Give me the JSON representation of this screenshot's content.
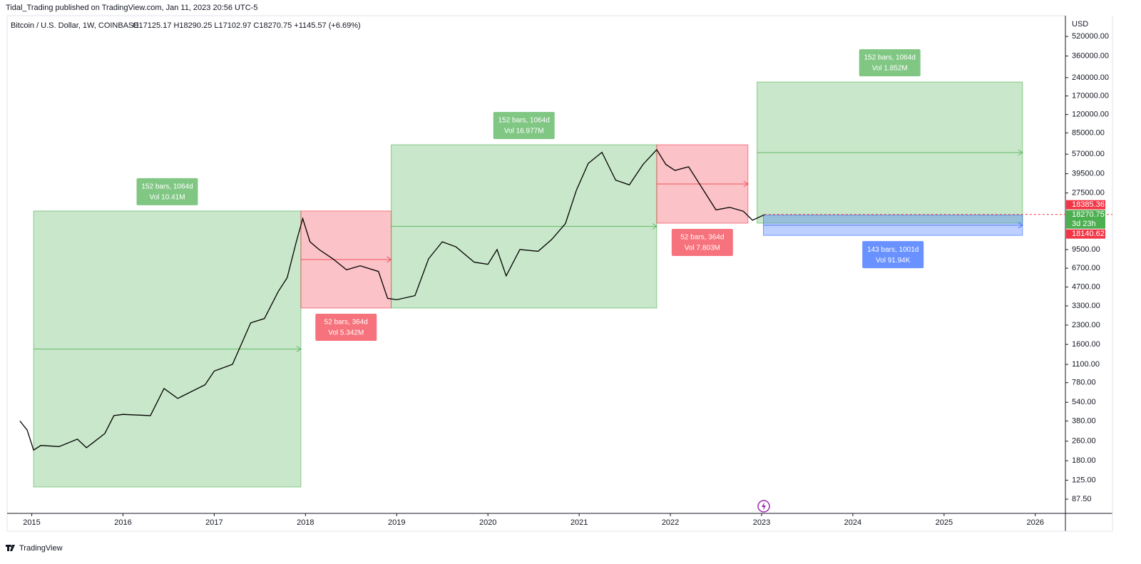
{
  "header": {
    "publisher": "Tidal_Trading published on TradingView.com, Jan 11, 2023 20:56 UTC-5",
    "brand": "TradingView"
  },
  "chart_data": {
    "type": "line",
    "title": "Bitcoin / U.S. Dollar, 1W, COINBASE",
    "ohlc": "O17125.17  H18290.25  L17102.97  C18270.75  +1145.57 (+6.69%)",
    "currency": "USD",
    "color": "#000000",
    "log_scale": true,
    "x": [
      2014.87,
      2014.95,
      2015.02,
      2015.1,
      2015.3,
      2015.5,
      2015.6,
      2015.8,
      2015.9,
      2016.0,
      2016.3,
      2016.45,
      2016.6,
      2016.9,
      2017.0,
      2017.2,
      2017.4,
      2017.55,
      2017.7,
      2017.8,
      2017.9,
      2017.97,
      2018.05,
      2018.15,
      2018.3,
      2018.45,
      2018.6,
      2018.8,
      2018.9,
      2019.0,
      2019.2,
      2019.35,
      2019.5,
      2019.65,
      2019.85,
      2020.0,
      2020.1,
      2020.2,
      2020.35,
      2020.55,
      2020.7,
      2020.85,
      2020.97,
      2021.1,
      2021.25,
      2021.4,
      2021.55,
      2021.7,
      2021.85,
      2021.95,
      2022.05,
      2022.2,
      2022.35,
      2022.5,
      2022.65,
      2022.8,
      2022.9,
      2023.03
    ],
    "values": [
      380,
      320,
      220,
      240,
      235,
      270,
      230,
      300,
      420,
      430,
      420,
      700,
      580,
      750,
      970,
      1100,
      2400,
      2600,
      4300,
      5600,
      11000,
      17000,
      11000,
      9500,
      8000,
      6500,
      7000,
      6300,
      3800,
      3700,
      4000,
      8000,
      11000,
      10000,
      7500,
      7200,
      9500,
      5800,
      9500,
      9200,
      11500,
      15500,
      29000,
      48000,
      59000,
      35000,
      32000,
      47000,
      62000,
      47000,
      42000,
      45000,
      30000,
      20000,
      21000,
      19500,
      16500,
      18270.75
    ],
    "xlim": [
      2014.73,
      2026.33
    ],
    "xticks": [
      2015,
      2016,
      2017,
      2018,
      2019,
      2020,
      2021,
      2022,
      2023,
      2024,
      2025,
      2026
    ],
    "ylim": [
      67,
      768000
    ],
    "yticks": [
      {
        "value": 520000,
        "label": "520000.00"
      },
      {
        "value": 360000,
        "label": "360000.00"
      },
      {
        "value": 240000,
        "label": "240000.00"
      },
      {
        "value": 170000,
        "label": "170000.00"
      },
      {
        "value": 120000,
        "label": "120000.00"
      },
      {
        "value": 85000,
        "label": "85000.00"
      },
      {
        "value": 57000,
        "label": "57000.00"
      },
      {
        "value": 39500,
        "label": "39500.00"
      },
      {
        "value": 27500,
        "label": "27500.00"
      },
      {
        "value": 9500,
        "label": "9500.00"
      },
      {
        "value": 6700,
        "label": "6700.00"
      },
      {
        "value": 4700,
        "label": "4700.00"
      },
      {
        "value": 3300,
        "label": "3300.00"
      },
      {
        "value": 2300,
        "label": "2300.00"
      },
      {
        "value": 1600,
        "label": "1600.00"
      },
      {
        "value": 1100,
        "label": "1100.00"
      },
      {
        "value": 780,
        "label": "780.00"
      },
      {
        "value": 540,
        "label": "540.00"
      },
      {
        "value": 380,
        "label": "380.00"
      },
      {
        "value": 260,
        "label": "260.00"
      },
      {
        "value": 180,
        "label": "180.00"
      },
      {
        "value": 125,
        "label": "125.00"
      },
      {
        "value": 87.5,
        "label": "87.50"
      }
    ],
    "price_labels": [
      {
        "value": 18385.36,
        "color": "#f23645"
      },
      {
        "value": 18270.75,
        "color": "#4caf50",
        "note": "3d 23h"
      },
      {
        "value": 18140.62,
        "color": "#f23645"
      }
    ],
    "ranges": [
      {
        "start": 2015.02,
        "end": 2017.95,
        "low": 110,
        "high": 19600,
        "color": "#4caf50",
        "bars": "152 bars, 1064d",
        "vol": "Vol 10.41M"
      },
      {
        "start": 2017.95,
        "end": 2018.94,
        "low": 3170,
        "high": 19600,
        "color": "#f23645",
        "bars": "52 bars, 364d",
        "vol": "Vol 5.342M"
      },
      {
        "start": 2018.94,
        "end": 2021.85,
        "low": 3170,
        "high": 68000,
        "color": "#4caf50",
        "bars": "152 bars, 1064d",
        "vol": "Vol 16.977M"
      },
      {
        "start": 2021.85,
        "end": 2022.85,
        "low": 15600,
        "high": 68000,
        "color": "#f23645",
        "bars": "52 bars, 364d",
        "vol": "Vol 7.803M"
      },
      {
        "start": 2022.95,
        "end": 2025.86,
        "low": 15600,
        "high": 221000,
        "color": "#4caf50",
        "bars": "152 bars, 1064d",
        "vol": "Vol 1.852M"
      },
      {
        "start": 2023.02,
        "end": 2025.86,
        "low": 12400,
        "high": 18140.62,
        "color": "#2962ff",
        "bars": "143 bars, 1001d",
        "vol": "Vol 91.94K"
      }
    ]
  }
}
